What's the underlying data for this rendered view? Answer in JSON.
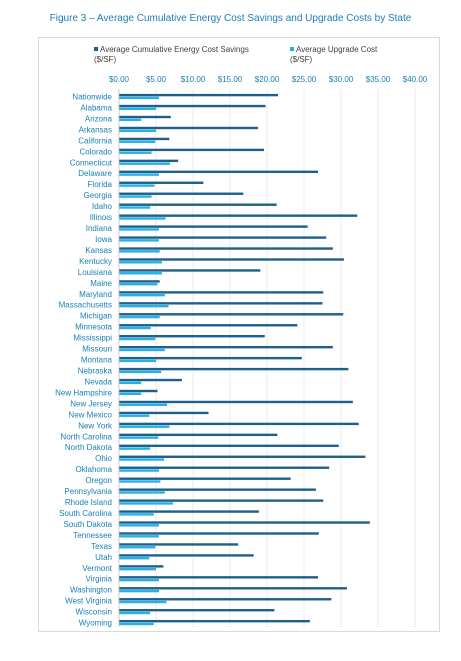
{
  "title": "Figure 3 – Average Cumulative Energy Cost Savings and Upgrade Costs by State",
  "chart_data": {
    "type": "bar",
    "orientation": "horizontal",
    "title": "",
    "xlabel": "",
    "ylabel": "",
    "xlim": [
      0,
      40
    ],
    "tick_labels": [
      "$0.00",
      "$5.00",
      "$10.00",
      "$15.00",
      "$20.00",
      "$25.00",
      "$30.00",
      "$35.00",
      "$40.00"
    ],
    "ticks": [
      0,
      5,
      10,
      15,
      20,
      25,
      30,
      35,
      40
    ],
    "grid": true,
    "legend_position": "top",
    "categories": [
      "Nationwide",
      "Alabama",
      "Arizona",
      "Arkansas",
      "California",
      "Colorado",
      "Connecticut",
      "Delaware",
      "Florida",
      "Georgia",
      "Idaho",
      "Illinois",
      "Indiana",
      "Iowa",
      "Kansas",
      "Kentucky",
      "Louisiana",
      "Maine",
      "Maryland",
      "Massachusetts",
      "Michigan",
      "Minnesota",
      "Mississippi",
      "Missouri",
      "Montana",
      "Nebraska",
      "Nevada",
      "New Hampshire",
      "New Jersey",
      "New Mexico",
      "New York",
      "North Carolina",
      "North Dakota",
      "Ohio",
      "Oklahoma",
      "Oregon",
      "Pennsylvania",
      "Rhode Island",
      "South Carolina",
      "South Dakota",
      "Tennessee",
      "Texas",
      "Utah",
      "Vermont",
      "Virginia",
      "Washington",
      "West Virginia",
      "Wisconsin",
      "Wyoming"
    ],
    "series": [
      {
        "name": "Average Cumulative Energy Cost Savings\n($/SF)",
        "color": "#1f5f8b",
        "values": [
          21.5,
          19.8,
          7.0,
          18.8,
          6.8,
          19.6,
          8.0,
          26.9,
          11.4,
          16.8,
          21.3,
          32.2,
          25.5,
          28.0,
          28.9,
          30.4,
          19.1,
          5.5,
          27.6,
          27.5,
          30.3,
          24.1,
          19.7,
          28.9,
          24.7,
          31.0,
          8.5,
          5.2,
          31.6,
          12.1,
          32.4,
          21.4,
          29.7,
          33.3,
          28.4,
          23.2,
          26.6,
          27.6,
          18.9,
          33.9,
          27.0,
          16.1,
          18.2,
          6.0,
          26.9,
          30.8,
          28.7,
          21.0,
          25.8
        ]
      },
      {
        "name": "Average Upgrade Cost\n($/SF)",
        "color": "#25b0e6",
        "values": [
          5.4,
          5.0,
          3.0,
          5.0,
          4.9,
          4.4,
          6.9,
          5.4,
          4.8,
          4.4,
          4.2,
          6.3,
          5.4,
          5.4,
          5.5,
          5.8,
          5.8,
          5.2,
          6.2,
          6.7,
          5.5,
          4.3,
          4.9,
          6.2,
          5.0,
          5.7,
          3.0,
          3.0,
          6.5,
          4.1,
          6.8,
          5.3,
          4.2,
          6.1,
          5.4,
          5.6,
          6.2,
          7.3,
          4.7,
          5.4,
          5.4,
          4.9,
          4.1,
          5.0,
          5.4,
          5.4,
          6.4,
          4.2,
          4.7
        ]
      }
    ]
  }
}
